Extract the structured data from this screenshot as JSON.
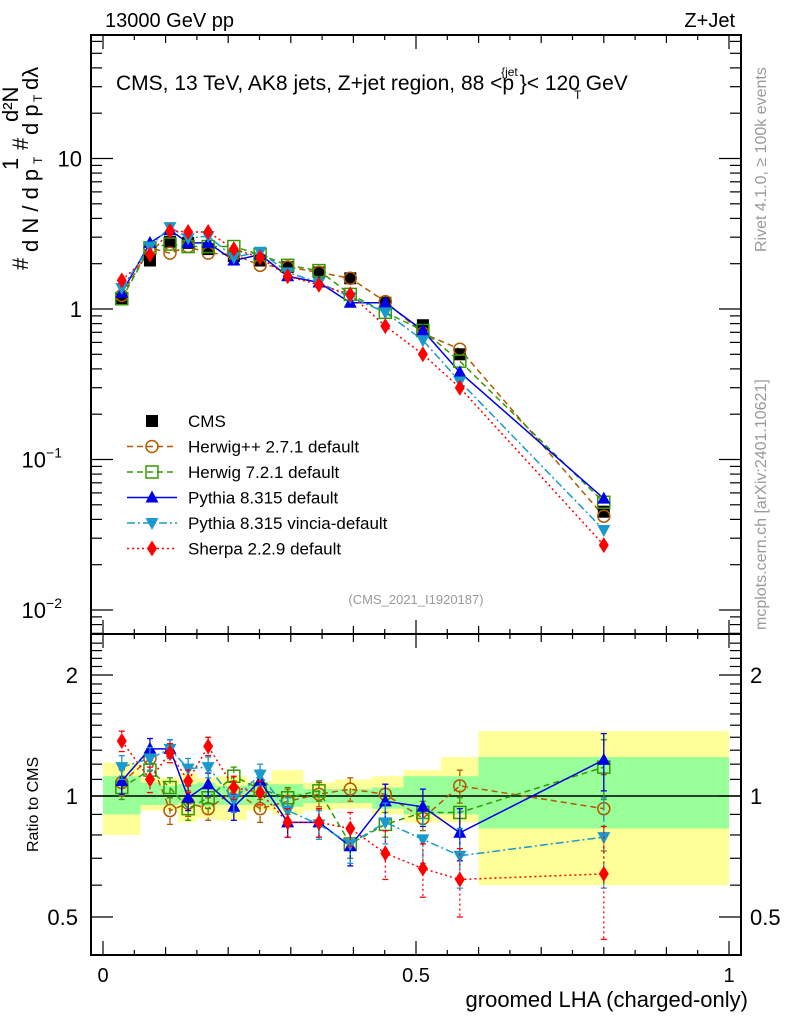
{
  "header": {
    "left": "13000 GeV pp",
    "right": "Z+Jet"
  },
  "side_labels": {
    "rivet": "Rivet 4.1.0, ≥ 100k events",
    "mcplots": "mcplots.cern.ch [arXiv:2401.10621]"
  },
  "chart_data": [
    {
      "type": "line",
      "panel": "main",
      "title": "CMS, 13 TeV, AK8 jets, Z+jet region, 88 <p_T^{jet}< 120 GeV",
      "title_parts": {
        "main": "CMS, 13 TeV, AK8 jets, Z+jet region, 88 <p",
        "sup": "{jet",
        "sub": "T",
        "tail": "}< 120 GeV"
      },
      "analysis_label": "(CMS_2021_I1920187)",
      "ylabel": "1/N dN/dpT d²N/dpT dλ",
      "yscale": "log",
      "ylim": [
        0.0075,
        25
      ],
      "xlim": [
        -0.02,
        1.02
      ],
      "ytick_labels": [
        {
          "v": 10,
          "label": "10"
        },
        {
          "v": 1,
          "label": "1"
        },
        {
          "v": 0.1,
          "label": "10",
          "exp": "−1"
        },
        {
          "v": 0.01,
          "label": "10",
          "exp": "−2"
        }
      ],
      "legend_position": "lower-left",
      "x": [
        0.03,
        0.075,
        0.107,
        0.136,
        0.168,
        0.209,
        0.251,
        0.295,
        0.345,
        0.395,
        0.451,
        0.511,
        0.57,
        0.8
      ],
      "series": [
        {
          "name": "CMS",
          "color": "#000000",
          "marker": "square-filled",
          "line": "none",
          "values": [
            1.17,
            2.1,
            2.8,
            2.75,
            2.5,
            2.25,
            2.1,
            1.9,
            1.75,
            1.6,
            1.1,
            0.78,
            0.5,
            0.045
          ]
        },
        {
          "name": "Herwig++ 2.7.1 default",
          "color": "#b35900",
          "marker": "circle-open",
          "line": "dashed",
          "values": [
            1.23,
            2.55,
            2.35,
            2.6,
            2.35,
            2.3,
            1.95,
            1.9,
            1.75,
            1.6,
            1.12,
            0.69,
            0.54,
            0.042
          ]
        },
        {
          "name": "Herwig 7.2.1 default",
          "color": "#339900",
          "marker": "square-open",
          "line": "dashed",
          "values": [
            1.17,
            2.55,
            2.7,
            2.6,
            2.6,
            2.6,
            2.3,
            1.95,
            1.8,
            1.25,
            0.95,
            0.72,
            0.45,
            0.052
          ]
        },
        {
          "name": "Pythia 8.315 default",
          "color": "#0000e6",
          "marker": "triangle-up-filled",
          "line": "solid",
          "values": [
            1.28,
            2.75,
            3.35,
            2.75,
            2.75,
            2.1,
            2.3,
            1.65,
            1.5,
            1.1,
            1.1,
            0.72,
            0.38,
            0.055
          ]
        },
        {
          "name": "Pythia 8.315 vincia-default",
          "color": "#1a99cc",
          "marker": "triangle-down-filled",
          "line": "dashdot",
          "values": [
            1.38,
            2.6,
            3.5,
            2.95,
            3.05,
            2.2,
            2.4,
            1.75,
            1.5,
            1.2,
            0.95,
            0.62,
            0.33,
            0.034
          ]
        },
        {
          "name": "Sherpa 2.2.9 default",
          "color": "#ff0000",
          "marker": "diamond-filled",
          "line": "dotted",
          "values": [
            1.55,
            2.3,
            3.3,
            3.25,
            3.25,
            2.5,
            2.2,
            1.65,
            1.45,
            1.25,
            0.77,
            0.5,
            0.3,
            0.027
          ]
        }
      ]
    },
    {
      "type": "line",
      "panel": "ratio",
      "ylabel": "Ratio to CMS",
      "xlabel": "groomed LHA (charged-only)",
      "yscale": "log",
      "ylim": [
        0.4,
        2.5
      ],
      "xlim": [
        -0.02,
        1.02
      ],
      "xtick_labels": [
        {
          "v": 0,
          "label": "0"
        },
        {
          "v": 0.5,
          "label": "0.5"
        },
        {
          "v": 1,
          "label": "1"
        }
      ],
      "ytick_labels": [
        {
          "v": 2,
          "label": "2"
        },
        {
          "v": 1,
          "label": "1"
        },
        {
          "v": 0.5,
          "label": "0.5"
        }
      ],
      "reference_line": 1,
      "bands": {
        "bin_edges": [
          0,
          0.04,
          0.06,
          0.09,
          0.12,
          0.15,
          0.18,
          0.23,
          0.27,
          0.32,
          0.37,
          0.43,
          0.48,
          0.54,
          0.6,
          1.0
        ],
        "inner_color": "#99ff99",
        "outer_color": "#ffff99",
        "inner": [
          [
            0.9,
            1.12
          ],
          [
            0.9,
            1.12
          ],
          [
            0.95,
            1.08
          ],
          [
            0.95,
            1.06
          ],
          [
            0.96,
            1.07
          ],
          [
            0.94,
            1.08
          ],
          [
            0.95,
            1.06
          ],
          [
            0.95,
            1.07
          ],
          [
            0.94,
            1.07
          ],
          [
            0.96,
            1.04
          ],
          [
            0.96,
            1.04
          ],
          [
            0.93,
            1.05
          ],
          [
            0.9,
            1.12
          ],
          [
            0.9,
            1.12
          ],
          [
            0.83,
            1.25
          ]
        ],
        "outer": [
          [
            0.8,
            1.21
          ],
          [
            0.8,
            1.21
          ],
          [
            0.92,
            1.11
          ],
          [
            0.92,
            1.11
          ],
          [
            0.86,
            1.14
          ],
          [
            0.88,
            1.11
          ],
          [
            0.87,
            1.12
          ],
          [
            0.92,
            1.09
          ],
          [
            0.9,
            1.16
          ],
          [
            0.92,
            1.08
          ],
          [
            0.93,
            1.1
          ],
          [
            0.9,
            1.12
          ],
          [
            0.86,
            1.16
          ],
          [
            0.86,
            1.25
          ],
          [
            0.6,
            1.45
          ]
        ]
      },
      "x": [
        0.03,
        0.075,
        0.107,
        0.136,
        0.168,
        0.209,
        0.251,
        0.295,
        0.345,
        0.395,
        0.451,
        0.511,
        0.57,
        0.8
      ],
      "series": [
        {
          "name": "Herwig++ 2.7.1 default",
          "color": "#b35900",
          "line": "dashed",
          "marker": "circle-open",
          "values": [
            1.08,
            1.24,
            0.92,
            0.96,
            0.93,
            1.03,
            0.93,
            0.97,
            1.01,
            1.04,
            1.01,
            0.88,
            1.06,
            0.93
          ],
          "err": [
            0.08,
            0.08,
            0.07,
            0.07,
            0.06,
            0.06,
            0.07,
            0.07,
            0.07,
            0.07,
            0.06,
            0.06,
            0.1,
            0.2
          ]
        },
        {
          "name": "Herwig 7.2.1 default",
          "color": "#339900",
          "line": "dashed",
          "marker": "square-open",
          "values": [
            1.05,
            1.16,
            1.05,
            0.93,
            0.99,
            1.12,
            1.04,
            0.99,
            1.03,
            0.76,
            0.85,
            0.91,
            0.91,
            1.18
          ],
          "err": [
            0.07,
            0.07,
            0.06,
            0.06,
            0.06,
            0.06,
            0.06,
            0.06,
            0.06,
            0.06,
            0.06,
            0.06,
            0.08,
            0.2
          ]
        },
        {
          "name": "Pythia 8.315 default",
          "color": "#0000e6",
          "line": "solid",
          "marker": "triangle-up-filled",
          "values": [
            1.09,
            1.31,
            1.31,
            0.99,
            1.07,
            0.94,
            1.09,
            0.86,
            0.86,
            0.75,
            0.97,
            0.94,
            0.81,
            1.23
          ],
          "err": [
            0.08,
            0.08,
            0.07,
            0.07,
            0.07,
            0.07,
            0.07,
            0.07,
            0.07,
            0.08,
            0.1,
            0.1,
            0.12,
            0.2
          ]
        },
        {
          "name": "Pythia 8.315 vincia-default",
          "color": "#1a99cc",
          "line": "dashdot",
          "marker": "triangle-down-filled",
          "values": [
            1.18,
            1.24,
            1.31,
            1.17,
            1.18,
            0.98,
            1.13,
            0.92,
            0.85,
            0.76,
            0.86,
            0.78,
            0.71,
            0.79
          ],
          "err": [
            0.08,
            0.08,
            0.07,
            0.07,
            0.07,
            0.07,
            0.07,
            0.07,
            0.07,
            0.08,
            0.1,
            0.1,
            0.12,
            0.2
          ]
        },
        {
          "name": "Sherpa 2.2.9 default",
          "color": "#ff0000",
          "line": "dotted",
          "marker": "diamond-filled",
          "values": [
            1.37,
            1.1,
            1.28,
            1.09,
            1.33,
            1.05,
            1.02,
            0.86,
            0.86,
            0.83,
            0.72,
            0.66,
            0.62,
            0.64
          ],
          "err": [
            0.08,
            0.08,
            0.07,
            0.07,
            0.07,
            0.07,
            0.07,
            0.07,
            0.07,
            0.08,
            0.1,
            0.1,
            0.12,
            0.2
          ]
        }
      ]
    }
  ]
}
